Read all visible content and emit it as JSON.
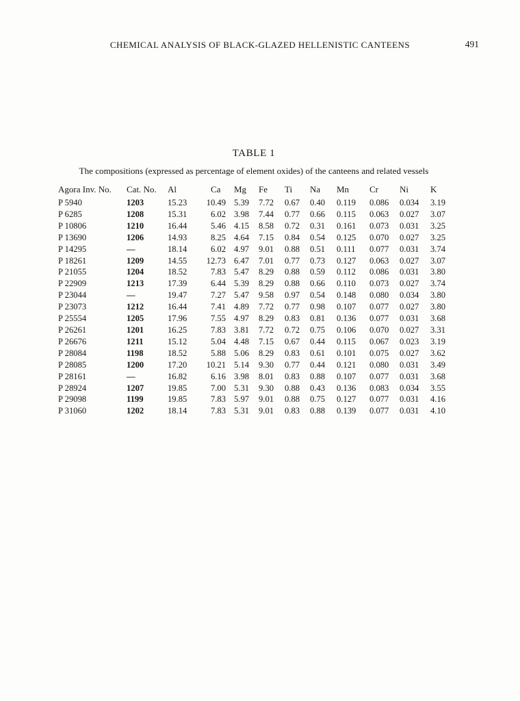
{
  "page": {
    "running_head": "CHEMICAL ANALYSIS OF BLACK-GLAZED HELLENISTIC CANTEENS",
    "page_number": "491"
  },
  "table": {
    "title": "TABLE 1",
    "caption": "The compositions (expressed as percentage of element oxides) of the canteens and related vessels",
    "columns": [
      "Agora Inv. No.",
      "Cat. No.",
      "Al",
      "Ca",
      "Mg",
      "Fe",
      "Ti",
      "Na",
      "Mn",
      "Cr",
      "Ni",
      "K"
    ],
    "rows": [
      [
        "P 5940",
        "1203",
        "15.23",
        "10.49",
        "5.39",
        "7.72",
        "0.67",
        "0.40",
        "0.119",
        "0.086",
        "0.034",
        "3.19"
      ],
      [
        "P 6285",
        "1208",
        "15.31",
        "6.02",
        "3.98",
        "7.44",
        "0.77",
        "0.66",
        "0.115",
        "0.063",
        "0.027",
        "3.07"
      ],
      [
        "P 10806",
        "1210",
        "16.44",
        "5.46",
        "4.15",
        "8.58",
        "0.72",
        "0.31",
        "0.161",
        "0.073",
        "0.031",
        "3.25"
      ],
      [
        "P 13690",
        "1206",
        "14.93",
        "8.25",
        "4.64",
        "7.15",
        "0.84",
        "0.54",
        "0.125",
        "0.070",
        "0.027",
        "3.25"
      ],
      [
        "P 14295",
        "—",
        "18.14",
        "6.02",
        "4.97",
        "9.01",
        "0.88",
        "0.51",
        "0.111",
        "0.077",
        "0.031",
        "3.74"
      ],
      [
        "P 18261",
        "1209",
        "14.55",
        "12.73",
        "6.47",
        "7.01",
        "0.77",
        "0.73",
        "0.127",
        "0.063",
        "0.027",
        "3.07"
      ],
      [
        "P 21055",
        "1204",
        "18.52",
        "7.83",
        "5.47",
        "8.29",
        "0.88",
        "0.59",
        "0.112",
        "0.086",
        "0.031",
        "3.80"
      ],
      [
        "P 22909",
        "1213",
        "17.39",
        "6.44",
        "5.39",
        "8.29",
        "0.88",
        "0.66",
        "0.110",
        "0.073",
        "0.027",
        "3.74"
      ],
      [
        "P 23044",
        "—",
        "19.47",
        "7.27",
        "5.47",
        "9.58",
        "0.97",
        "0.54",
        "0.148",
        "0.080",
        "0.034",
        "3.80"
      ],
      [
        "P 23073",
        "1212",
        "16.44",
        "7.41",
        "4.89",
        "7.72",
        "0.77",
        "0.98",
        "0.107",
        "0.077",
        "0.027",
        "3.80"
      ],
      [
        "P 25554",
        "1205",
        "17.96",
        "7.55",
        "4.97",
        "8.29",
        "0.83",
        "0.81",
        "0.136",
        "0.077",
        "0.031",
        "3.68"
      ],
      [
        "P 26261",
        "1201",
        "16.25",
        "7.83",
        "3.81",
        "7.72",
        "0.72",
        "0.75",
        "0.106",
        "0.070",
        "0.027",
        "3.31"
      ],
      [
        "P 26676",
        "1211",
        "15.12",
        "5.04",
        "4.48",
        "7.15",
        "0.67",
        "0.44",
        "0.115",
        "0.067",
        "0.023",
        "3.19"
      ],
      [
        "P 28084",
        "1198",
        "18.52",
        "5.88",
        "5.06",
        "8.29",
        "0.83",
        "0.61",
        "0.101",
        "0.075",
        "0.027",
        "3.62"
      ],
      [
        "P 28085",
        "1200",
        "17.20",
        "10.21",
        "5.14",
        "9.30",
        "0.77",
        "0.44",
        "0.121",
        "0.080",
        "0.031",
        "3.49"
      ],
      [
        "P 28161",
        "—",
        "16.82",
        "6.16",
        "3.98",
        "8.01",
        "0.83",
        "0.88",
        "0.107",
        "0.077",
        "0.031",
        "3.68"
      ],
      [
        "P 28924",
        "1207",
        "19.85",
        "7.00",
        "5.31",
        "9.30",
        "0.88",
        "0.43",
        "0.136",
        "0.083",
        "0.034",
        "3.55"
      ],
      [
        "P 29098",
        "1199",
        "19.85",
        "7.83",
        "5.97",
        "9.01",
        "0.88",
        "0.75",
        "0.127",
        "0.077",
        "0.031",
        "4.16"
      ],
      [
        "P 31060",
        "1202",
        "18.14",
        "7.83",
        "5.31",
        "9.01",
        "0.83",
        "0.88",
        "0.139",
        "0.077",
        "0.031",
        "4.10"
      ]
    ]
  }
}
